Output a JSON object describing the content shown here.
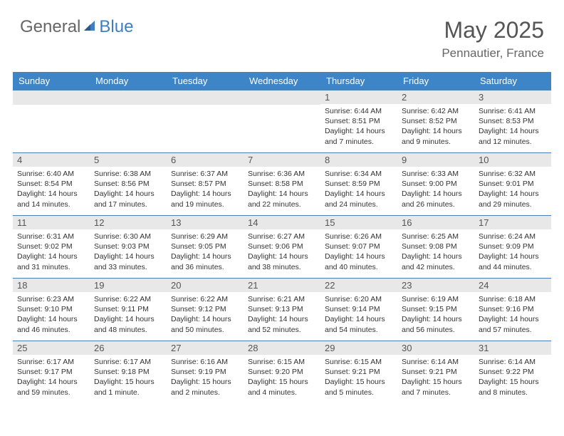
{
  "brand": {
    "part1": "General",
    "part2": "Blue"
  },
  "title": "May 2025",
  "location": "Pennautier, France",
  "colors": {
    "header_bg": "#3d85c6",
    "header_text": "#ffffff",
    "daynum_bg": "#e8e8e8",
    "border": "#4a7fb5",
    "brand_gray": "#666666",
    "brand_blue": "#3d7fc4"
  },
  "font": {
    "title_size": 32,
    "location_size": 17,
    "header_size": 13,
    "cell_size": 10.5
  },
  "weekdays": [
    "Sunday",
    "Monday",
    "Tuesday",
    "Wednesday",
    "Thursday",
    "Friday",
    "Saturday"
  ],
  "weeks": [
    [
      {
        "day": "",
        "sunrise": "",
        "sunset": "",
        "daylight": ""
      },
      {
        "day": "",
        "sunrise": "",
        "sunset": "",
        "daylight": ""
      },
      {
        "day": "",
        "sunrise": "",
        "sunset": "",
        "daylight": ""
      },
      {
        "day": "",
        "sunrise": "",
        "sunset": "",
        "daylight": ""
      },
      {
        "day": "1",
        "sunrise": "Sunrise: 6:44 AM",
        "sunset": "Sunset: 8:51 PM",
        "daylight": "Daylight: 14 hours and 7 minutes."
      },
      {
        "day": "2",
        "sunrise": "Sunrise: 6:42 AM",
        "sunset": "Sunset: 8:52 PM",
        "daylight": "Daylight: 14 hours and 9 minutes."
      },
      {
        "day": "3",
        "sunrise": "Sunrise: 6:41 AM",
        "sunset": "Sunset: 8:53 PM",
        "daylight": "Daylight: 14 hours and 12 minutes."
      }
    ],
    [
      {
        "day": "4",
        "sunrise": "Sunrise: 6:40 AM",
        "sunset": "Sunset: 8:54 PM",
        "daylight": "Daylight: 14 hours and 14 minutes."
      },
      {
        "day": "5",
        "sunrise": "Sunrise: 6:38 AM",
        "sunset": "Sunset: 8:56 PM",
        "daylight": "Daylight: 14 hours and 17 minutes."
      },
      {
        "day": "6",
        "sunrise": "Sunrise: 6:37 AM",
        "sunset": "Sunset: 8:57 PM",
        "daylight": "Daylight: 14 hours and 19 minutes."
      },
      {
        "day": "7",
        "sunrise": "Sunrise: 6:36 AM",
        "sunset": "Sunset: 8:58 PM",
        "daylight": "Daylight: 14 hours and 22 minutes."
      },
      {
        "day": "8",
        "sunrise": "Sunrise: 6:34 AM",
        "sunset": "Sunset: 8:59 PM",
        "daylight": "Daylight: 14 hours and 24 minutes."
      },
      {
        "day": "9",
        "sunrise": "Sunrise: 6:33 AM",
        "sunset": "Sunset: 9:00 PM",
        "daylight": "Daylight: 14 hours and 26 minutes."
      },
      {
        "day": "10",
        "sunrise": "Sunrise: 6:32 AM",
        "sunset": "Sunset: 9:01 PM",
        "daylight": "Daylight: 14 hours and 29 minutes."
      }
    ],
    [
      {
        "day": "11",
        "sunrise": "Sunrise: 6:31 AM",
        "sunset": "Sunset: 9:02 PM",
        "daylight": "Daylight: 14 hours and 31 minutes."
      },
      {
        "day": "12",
        "sunrise": "Sunrise: 6:30 AM",
        "sunset": "Sunset: 9:03 PM",
        "daylight": "Daylight: 14 hours and 33 minutes."
      },
      {
        "day": "13",
        "sunrise": "Sunrise: 6:29 AM",
        "sunset": "Sunset: 9:05 PM",
        "daylight": "Daylight: 14 hours and 36 minutes."
      },
      {
        "day": "14",
        "sunrise": "Sunrise: 6:27 AM",
        "sunset": "Sunset: 9:06 PM",
        "daylight": "Daylight: 14 hours and 38 minutes."
      },
      {
        "day": "15",
        "sunrise": "Sunrise: 6:26 AM",
        "sunset": "Sunset: 9:07 PM",
        "daylight": "Daylight: 14 hours and 40 minutes."
      },
      {
        "day": "16",
        "sunrise": "Sunrise: 6:25 AM",
        "sunset": "Sunset: 9:08 PM",
        "daylight": "Daylight: 14 hours and 42 minutes."
      },
      {
        "day": "17",
        "sunrise": "Sunrise: 6:24 AM",
        "sunset": "Sunset: 9:09 PM",
        "daylight": "Daylight: 14 hours and 44 minutes."
      }
    ],
    [
      {
        "day": "18",
        "sunrise": "Sunrise: 6:23 AM",
        "sunset": "Sunset: 9:10 PM",
        "daylight": "Daylight: 14 hours and 46 minutes."
      },
      {
        "day": "19",
        "sunrise": "Sunrise: 6:22 AM",
        "sunset": "Sunset: 9:11 PM",
        "daylight": "Daylight: 14 hours and 48 minutes."
      },
      {
        "day": "20",
        "sunrise": "Sunrise: 6:22 AM",
        "sunset": "Sunset: 9:12 PM",
        "daylight": "Daylight: 14 hours and 50 minutes."
      },
      {
        "day": "21",
        "sunrise": "Sunrise: 6:21 AM",
        "sunset": "Sunset: 9:13 PM",
        "daylight": "Daylight: 14 hours and 52 minutes."
      },
      {
        "day": "22",
        "sunrise": "Sunrise: 6:20 AM",
        "sunset": "Sunset: 9:14 PM",
        "daylight": "Daylight: 14 hours and 54 minutes."
      },
      {
        "day": "23",
        "sunrise": "Sunrise: 6:19 AM",
        "sunset": "Sunset: 9:15 PM",
        "daylight": "Daylight: 14 hours and 56 minutes."
      },
      {
        "day": "24",
        "sunrise": "Sunrise: 6:18 AM",
        "sunset": "Sunset: 9:16 PM",
        "daylight": "Daylight: 14 hours and 57 minutes."
      }
    ],
    [
      {
        "day": "25",
        "sunrise": "Sunrise: 6:17 AM",
        "sunset": "Sunset: 9:17 PM",
        "daylight": "Daylight: 14 hours and 59 minutes."
      },
      {
        "day": "26",
        "sunrise": "Sunrise: 6:17 AM",
        "sunset": "Sunset: 9:18 PM",
        "daylight": "Daylight: 15 hours and 1 minute."
      },
      {
        "day": "27",
        "sunrise": "Sunrise: 6:16 AM",
        "sunset": "Sunset: 9:19 PM",
        "daylight": "Daylight: 15 hours and 2 minutes."
      },
      {
        "day": "28",
        "sunrise": "Sunrise: 6:15 AM",
        "sunset": "Sunset: 9:20 PM",
        "daylight": "Daylight: 15 hours and 4 minutes."
      },
      {
        "day": "29",
        "sunrise": "Sunrise: 6:15 AM",
        "sunset": "Sunset: 9:21 PM",
        "daylight": "Daylight: 15 hours and 5 minutes."
      },
      {
        "day": "30",
        "sunrise": "Sunrise: 6:14 AM",
        "sunset": "Sunset: 9:21 PM",
        "daylight": "Daylight: 15 hours and 7 minutes."
      },
      {
        "day": "31",
        "sunrise": "Sunrise: 6:14 AM",
        "sunset": "Sunset: 9:22 PM",
        "daylight": "Daylight: 15 hours and 8 minutes."
      }
    ]
  ]
}
